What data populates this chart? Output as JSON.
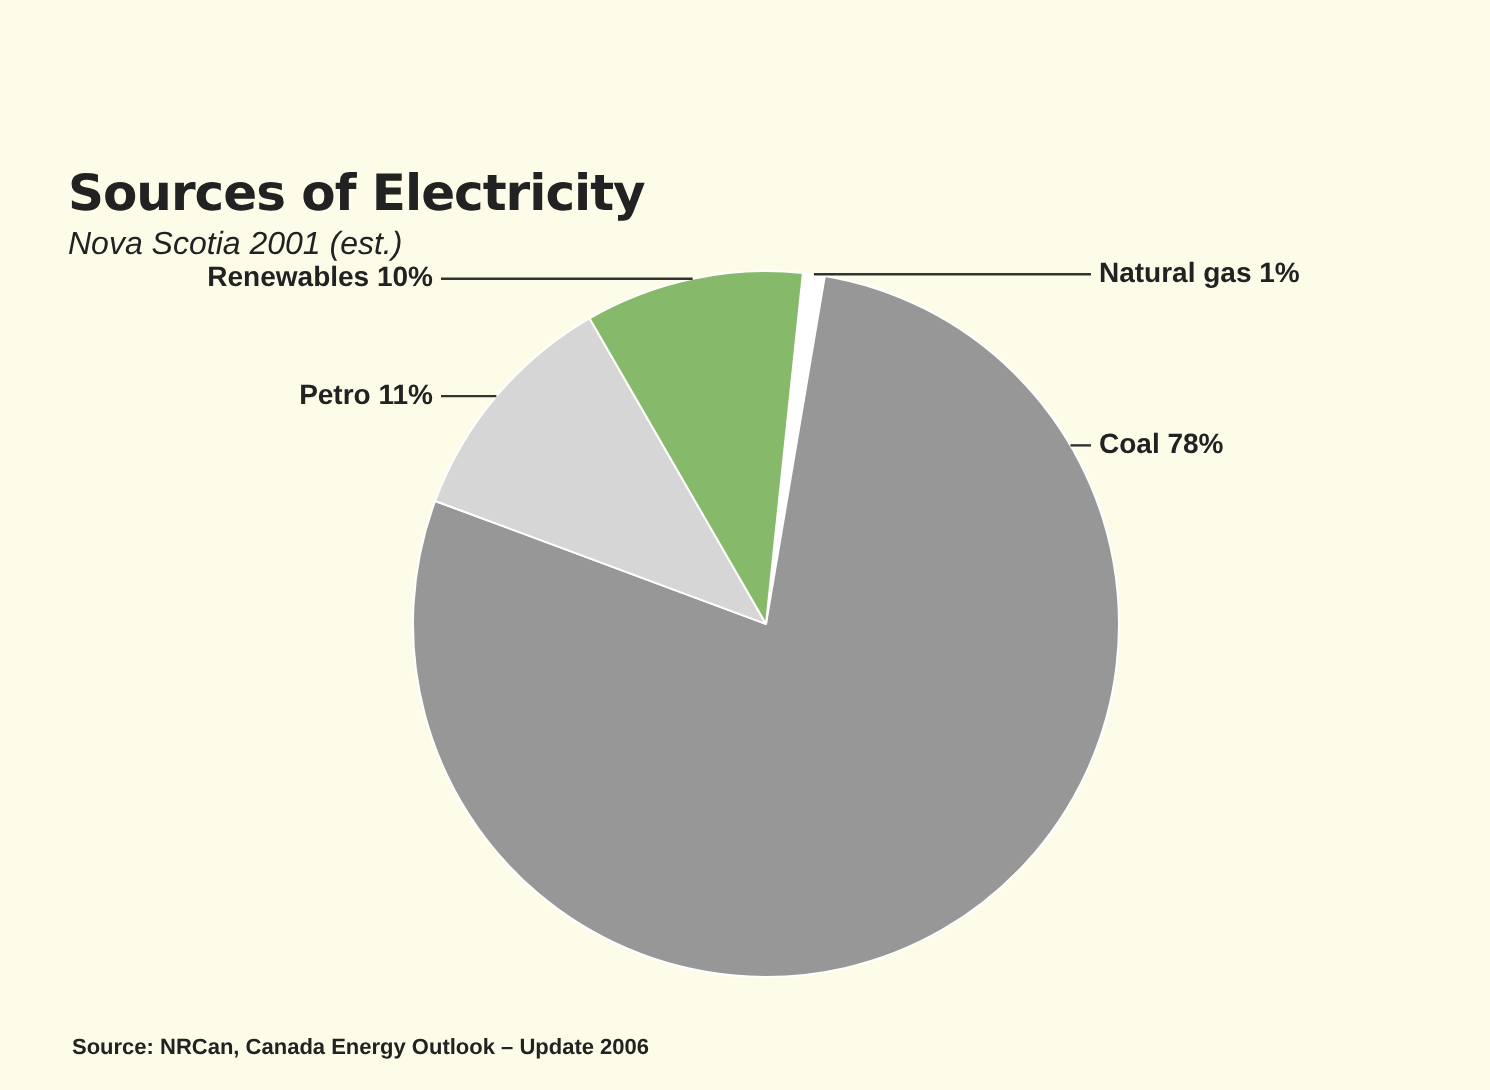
{
  "chart_data": {
    "type": "pie",
    "title": "Sources of Electricity",
    "subtitle": "Nova Scotia 2001 (est.)",
    "categories": [
      "Natural gas",
      "Coal",
      "Petro",
      "Renewables"
    ],
    "values": [
      1,
      78,
      11,
      10
    ],
    "value_labels": [
      "1%",
      "78%",
      "11%",
      "10%"
    ],
    "colors": [
      "#ffffff",
      "#979797",
      "#d6d6d6",
      "#86b96a"
    ],
    "legend": false,
    "annotations": [
      "Source: NRCan, Canada Energy Outlook – Update 2006"
    ]
  }
}
